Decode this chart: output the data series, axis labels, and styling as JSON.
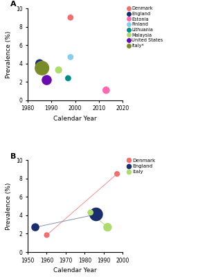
{
  "panel_A": {
    "points": [
      {
        "country": "Denmark",
        "year": 1998,
        "prevalence": 9.0,
        "size": 40,
        "color": "#F07070"
      },
      {
        "country": "England",
        "year": 1985,
        "prevalence": 4.0,
        "size": 80,
        "color": "#1a2e6e"
      },
      {
        "country": "Estonia",
        "year": 2013,
        "prevalence": 1.1,
        "size": 60,
        "color": "#FF69B4"
      },
      {
        "country": "Finland",
        "year": 1998,
        "prevalence": 4.7,
        "size": 40,
        "color": "#87CEEB"
      },
      {
        "country": "Lithuania",
        "year": 1997,
        "prevalence": 2.4,
        "size": 40,
        "color": "#008B8B"
      },
      {
        "country": "Malaysia",
        "year": 1993,
        "prevalence": 3.3,
        "size": 55,
        "color": "#ADDB6F"
      },
      {
        "country": "United States",
        "year": 1988,
        "prevalence": 2.2,
        "size": 110,
        "color": "#6A0DAD"
      },
      {
        "country": "Italy*",
        "year": 1986,
        "prevalence": 3.5,
        "size": 230,
        "color": "#7A8C2A"
      }
    ],
    "xlim": [
      1980,
      2020
    ],
    "ylim": [
      0,
      10
    ],
    "xticks": [
      1980,
      1990,
      2000,
      2010,
      2020
    ],
    "yticks": [
      0,
      2,
      4,
      6,
      8,
      10
    ],
    "xlabel": "Calendar Year",
    "ylabel": "Prevalence (%)",
    "label": "A"
  },
  "panel_B": {
    "points": [
      {
        "country": "Denmark",
        "year": 1960,
        "prevalence": 1.85,
        "size": 35,
        "color": "#F07070"
      },
      {
        "country": "Denmark",
        "year": 1997,
        "prevalence": 8.5,
        "size": 35,
        "color": "#F07070"
      },
      {
        "country": "England",
        "year": 1954,
        "prevalence": 2.7,
        "size": 70,
        "color": "#1a2e6e"
      },
      {
        "country": "England",
        "year": 1986,
        "prevalence": 4.1,
        "size": 200,
        "color": "#1a2e6e"
      },
      {
        "country": "Italy",
        "year": 1983,
        "prevalence": 4.3,
        "size": 40,
        "color": "#ADDB6F"
      },
      {
        "country": "Italy",
        "year": 1992,
        "prevalence": 2.7,
        "size": 80,
        "color": "#ADDB6F"
      }
    ],
    "lines": [
      {
        "country": "Denmark",
        "years": [
          1960,
          1997
        ],
        "prevalences": [
          1.85,
          8.5
        ],
        "color": "#F09090"
      },
      {
        "country": "England",
        "years": [
          1954,
          1986
        ],
        "prevalences": [
          2.7,
          4.1
        ],
        "color": "#8090B0"
      },
      {
        "country": "Italy",
        "years": [
          1983,
          1992
        ],
        "prevalences": [
          4.3,
          2.7
        ],
        "color": "#ADDB6F"
      }
    ],
    "xlim": [
      1950,
      2000
    ],
    "ylim": [
      0,
      10
    ],
    "xticks": [
      1950,
      1960,
      1970,
      1980,
      1990,
      2000
    ],
    "yticks": [
      0,
      2,
      4,
      6,
      8,
      10
    ],
    "xlabel": "Calendar Year",
    "ylabel": "Prevalence (%)",
    "label": "B"
  },
  "legend_A": {
    "entries": [
      {
        "label": "Denmark",
        "color": "#F07070"
      },
      {
        "label": "England",
        "color": "#1a2e6e"
      },
      {
        "label": "Estonia",
        "color": "#FF69B4"
      },
      {
        "label": "Finland",
        "color": "#87CEEB"
      },
      {
        "label": "Lithuania",
        "color": "#008B8B"
      },
      {
        "label": "Malaysia",
        "color": "#ADDB6F"
      },
      {
        "label": "United States",
        "color": "#6A0DAD"
      },
      {
        "label": "Italy*",
        "color": "#7A8C2A"
      }
    ]
  },
  "legend_B": {
    "entries": [
      {
        "label": "Denmark",
        "color": "#F07070"
      },
      {
        "label": "England",
        "color": "#1a2e6e"
      },
      {
        "label": "Italy",
        "color": "#ADDB6F"
      }
    ]
  },
  "background_color": "#ffffff"
}
